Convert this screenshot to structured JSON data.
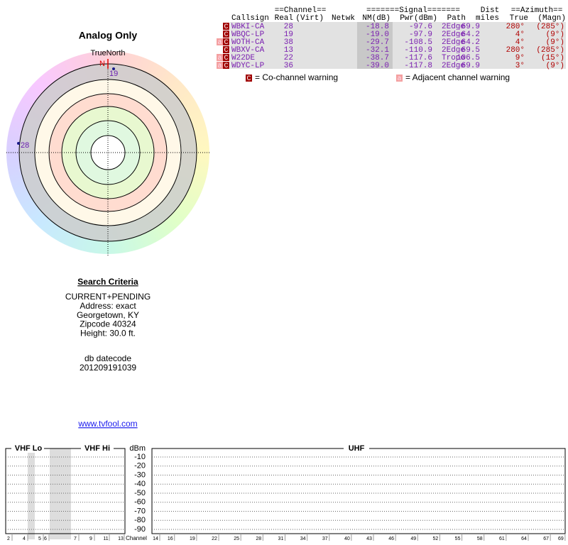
{
  "plot": {
    "title": "Analog Only",
    "north_label": "TrueNorth",
    "north_letter": "N",
    "markers": [
      {
        "label": "19"
      },
      {
        "label": "28"
      }
    ]
  },
  "table": {
    "group_headers": [
      "==Channel==",
      "=======Signal=======",
      "Dist",
      "==Azimuth=="
    ],
    "columns": [
      "Callsign",
      "Real",
      "(Virt)",
      "Netwk",
      "NM(dB)",
      "Pwr(dBm)",
      "Path",
      "miles",
      "True",
      "(Magn)"
    ],
    "rows": [
      {
        "flags": [
          "C"
        ],
        "callsign": "WBKI-CA",
        "real": "28",
        "nm": "-18.8",
        "pwr": "-97.6",
        "path": "2Edge",
        "dist": "69.9",
        "true": "280°",
        "magn": "(285°)"
      },
      {
        "flags": [
          "C"
        ],
        "callsign": "WBQC-LP",
        "real": "19",
        "nm": "-19.0",
        "pwr": "-97.9",
        "path": "2Edge",
        "dist": "64.2",
        "true": "4°",
        "magn": "(9°)"
      },
      {
        "flags": [
          "a",
          "C"
        ],
        "callsign": "WOTH-CA",
        "real": "38",
        "nm": "-29.7",
        "pwr": "-108.5",
        "path": "2Edge",
        "dist": "64.2",
        "true": "4°",
        "magn": "(9°)"
      },
      {
        "flags": [
          "C"
        ],
        "callsign": "WBXV-CA",
        "real": "13",
        "nm": "-32.1",
        "pwr": "-110.9",
        "path": "2Edge",
        "dist": "69.5",
        "true": "280°",
        "magn": "(285°)"
      },
      {
        "flags": [
          "a",
          "C"
        ],
        "callsign": "W22DE",
        "real": "22",
        "nm": "-38.7",
        "pwr": "-117.6",
        "path": "Tropo",
        "dist": "106.5",
        "true": "9°",
        "magn": "(15°)"
      },
      {
        "flags": [
          "a",
          "C"
        ],
        "callsign": "WDYC-LP",
        "real": "36",
        "nm": "-39.0",
        "pwr": "-117.8",
        "path": "2Edge",
        "dist": "69.9",
        "true": "3°",
        "magn": "(9°)"
      }
    ],
    "legend": [
      {
        "icon": "C",
        "text": "= Co-channel warning"
      },
      {
        "icon": "a",
        "text": "= Adjacent channel warning"
      }
    ]
  },
  "criteria": {
    "title": "Search Criteria",
    "lines": [
      "CURRENT+PENDING",
      "Address: exact",
      "Georgetown, KY",
      "Zipcode 40324",
      "Height: 30.0 ft."
    ],
    "datecode_label": "db datecode",
    "datecode": "201209191039"
  },
  "link": "www.tvfool.com",
  "spectrum": {
    "bands": [
      "VHF Lo",
      "VHF Hi",
      "UHF"
    ],
    "unit": "dBm",
    "x_label": "Channel",
    "levels": [
      "-10",
      "-20",
      "-30",
      "-40",
      "-50",
      "-60",
      "-70",
      "-80",
      "-90"
    ],
    "vhf_channels": [
      "2",
      "4",
      "5",
      "6",
      "7",
      "9",
      "11",
      "13"
    ],
    "uhf_channels": [
      "14",
      "16",
      "19",
      "22",
      "25",
      "28",
      "31",
      "34",
      "37",
      "40",
      "43",
      "46",
      "49",
      "52",
      "55",
      "58",
      "61",
      "64",
      "67",
      "69"
    ]
  }
}
